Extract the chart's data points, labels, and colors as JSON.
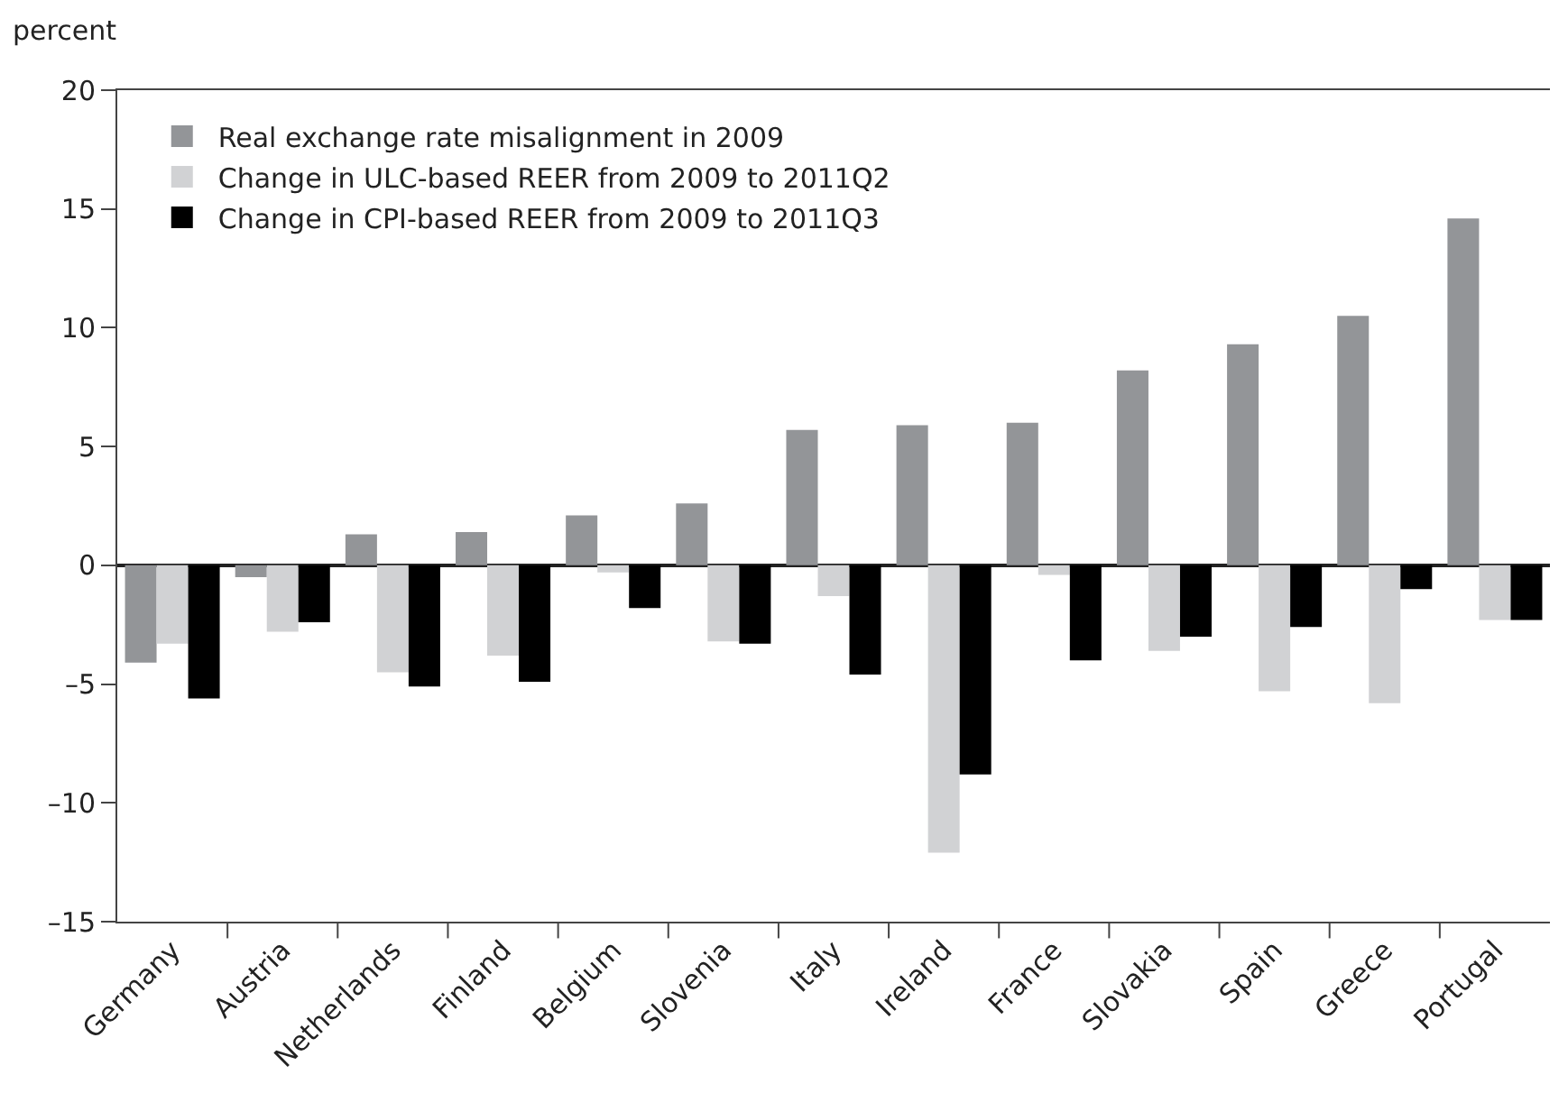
{
  "chart_data": {
    "type": "bar",
    "ylabel": "percent",
    "categories": [
      "Germany",
      "Austria",
      "Netherlands",
      "Finland",
      "Belgium",
      "Slovenia",
      "Italy",
      "Ireland",
      "France",
      "Slovakia",
      "Spain",
      "Greece",
      "Portugal"
    ],
    "series": [
      {
        "name": "Real exchange rate misalignment in 2009",
        "color": "#939598",
        "values": [
          -4.1,
          -0.5,
          1.3,
          1.4,
          2.1,
          2.6,
          5.7,
          5.9,
          6.0,
          8.2,
          9.3,
          10.5,
          14.6
        ]
      },
      {
        "name": "Change in ULC-based REER from 2009 to 2011Q2",
        "color": "#d1d2d4",
        "values": [
          -3.3,
          -2.8,
          -4.5,
          -3.8,
          -0.3,
          -3.2,
          -1.3,
          -12.1,
          -0.4,
          -3.6,
          -5.3,
          -5.8,
          -2.3
        ]
      },
      {
        "name": "Change in CPI-based REER from 2009 to 2011Q3",
        "color": "#000000",
        "values": [
          -5.6,
          -2.4,
          -5.1,
          -4.9,
          -1.8,
          -3.3,
          -4.6,
          -8.8,
          -4.0,
          -3.0,
          -2.6,
          -1.0,
          -2.3
        ]
      }
    ],
    "ylim": [
      -15,
      20
    ],
    "yticks": [
      {
        "value": -15,
        "label": "–15"
      },
      {
        "value": -10,
        "label": "–10"
      },
      {
        "value": -5,
        "label": "–5"
      },
      0,
      5,
      10,
      15,
      20
    ],
    "legend": "top left"
  }
}
